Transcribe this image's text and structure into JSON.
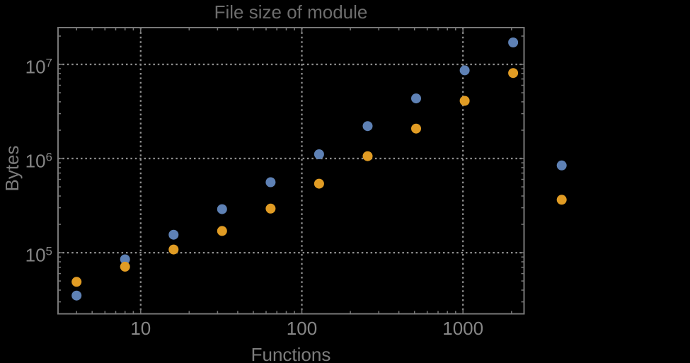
{
  "styles": {
    "background": "#000000",
    "frame_color": "#787878",
    "grid_color": "#8f8f8f",
    "title_color": "#6d6d6d",
    "axis_label_color": "#7d7d7d",
    "tick_label_color": "#868686"
  },
  "chart_data": {
    "type": "scatter",
    "title": "File size of module",
    "xlabel": "Functions",
    "ylabel": "Bytes",
    "x_scale": "log",
    "y_scale": "log",
    "grid": "dotted gridlines at decade values only, no legend",
    "xlim": [
      3.07,
      2392
    ],
    "ylim": [
      22400,
      24600000
    ],
    "x": [
      4,
      8,
      16,
      32,
      64,
      128,
      256,
      512,
      1024,
      2048,
      4096
    ],
    "series": [
      {
        "name": "blue",
        "color": "#5E81B5",
        "values": [
          35000,
          85000,
          155000,
          290000,
          560000,
          1110000,
          2210000,
          4350000,
          8650000,
          17100000,
          845000
        ]
      },
      {
        "name": "orange",
        "color": "#E19C24",
        "values": [
          49000,
          71000,
          108000,
          170000,
          294000,
          540000,
          1060000,
          2080000,
          4100000,
          8100000,
          365000
        ]
      }
    ],
    "x_ticks": [
      {
        "label": "10",
        "value": 10
      },
      {
        "label": "100",
        "value": 100
      },
      {
        "label": "1000",
        "value": 1000
      }
    ],
    "x_minor_ticks": [
      4,
      5,
      6,
      7,
      8,
      9,
      20,
      30,
      40,
      50,
      60,
      70,
      80,
      90,
      200,
      300,
      400,
      500,
      600,
      700,
      800,
      900,
      2000
    ],
    "y_ticks": [
      {
        "base": "10",
        "exp": "5",
        "value": 100000
      },
      {
        "base": "10",
        "exp": "6",
        "value": 1000000
      },
      {
        "base": "10",
        "exp": "7",
        "value": 10000000
      }
    ],
    "y_minor_ticks": [
      30000,
      40000,
      50000,
      60000,
      70000,
      80000,
      90000,
      200000,
      300000,
      400000,
      500000,
      600000,
      700000,
      800000,
      900000,
      2000000,
      3000000,
      4000000,
      5000000,
      6000000,
      7000000,
      8000000,
      9000000,
      20000000
    ]
  }
}
